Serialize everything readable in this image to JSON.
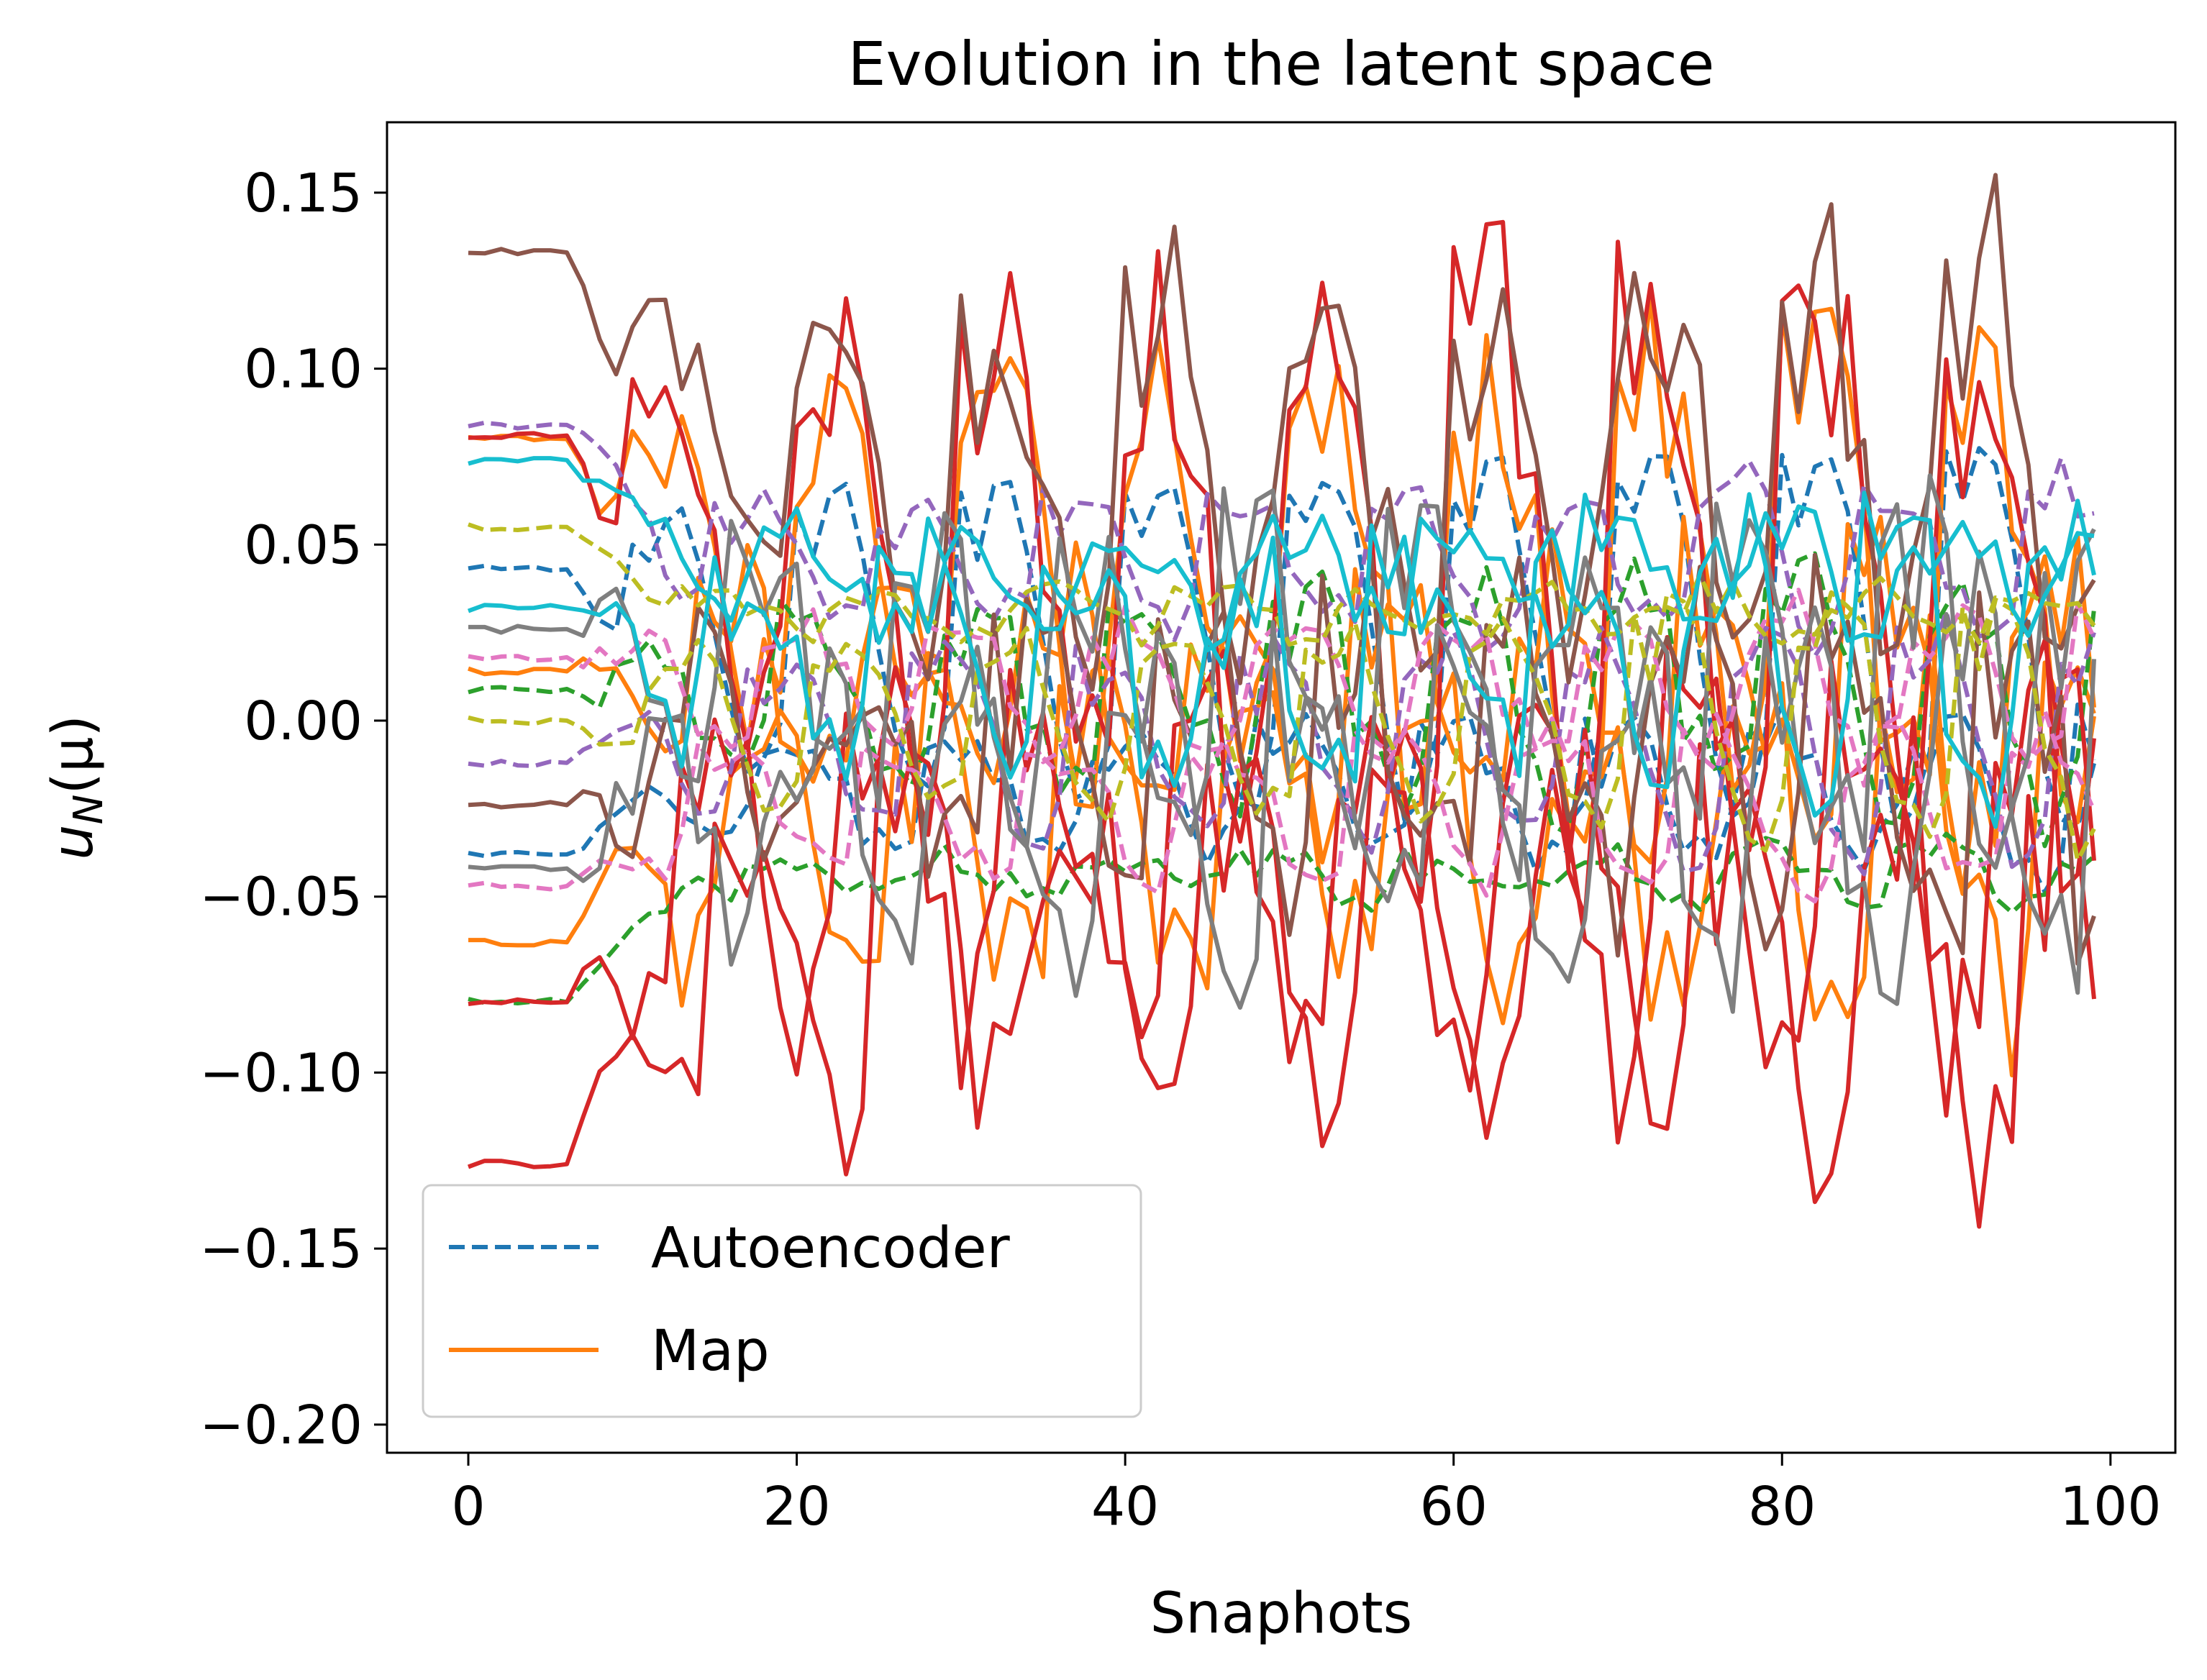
{
  "chart_data": {
    "type": "line",
    "title": "Evolution in the latent space",
    "xlabel": "Snaphots",
    "ylabel_main": "u",
    "ylabel_sub": "N",
    "ylabel_rest": "(μ)",
    "xlim": [
      -4.95,
      103.95
    ],
    "ylim": [
      -0.208,
      0.17
    ],
    "xticks": [
      0,
      20,
      40,
      60,
      80,
      100
    ],
    "yticks": [
      -0.2,
      -0.15,
      -0.1,
      -0.05,
      0.0,
      0.05,
      0.1,
      0.15
    ],
    "ytick_labels": [
      "−0.20",
      "−0.15",
      "−0.10",
      "−0.05",
      "0.00",
      "0.05",
      "0.10",
      "0.15"
    ],
    "xtick_labels": [
      "0",
      "20",
      "40",
      "60",
      "80",
      "100"
    ],
    "grid": false,
    "legend": {
      "placement": "lower-left",
      "entries": [
        {
          "label": "Autoencoder",
          "style": "dashed",
          "color": "#1f77b4"
        },
        {
          "label": "Map",
          "style": "solid",
          "color": "#ff7f0e"
        }
      ]
    },
    "x": {
      "start": 0,
      "stop": 99,
      "step": 1
    },
    "series": [
      {
        "color": "#1f77b4",
        "style": "dashed",
        "baseline": 0.043,
        "period": 10,
        "phase": 0.0,
        "amp": 0.052,
        "noise": 0.004
      },
      {
        "color": "#1f77b4",
        "style": "dashed",
        "baseline": -0.038,
        "period": 10,
        "phase": 2.0,
        "amp": 0.018,
        "noise": 0.006
      },
      {
        "color": "#ff7f0e",
        "style": "solid",
        "baseline": 0.08,
        "period": 10,
        "phase": 0.0,
        "amp": 0.055,
        "noise": 0.02
      },
      {
        "color": "#ff7f0e",
        "style": "solid",
        "baseline": -0.063,
        "period": 10,
        "phase": 4.0,
        "amp": 0.04,
        "noise": 0.02
      },
      {
        "color": "#ff7f0e",
        "style": "solid",
        "baseline": 0.014,
        "period": 10,
        "phase": 6.0,
        "amp": 0.035,
        "noise": 0.015
      },
      {
        "color": "#2ca02c",
        "style": "dashed",
        "baseline": -0.08,
        "period": 10,
        "phase": 3.0,
        "amp": 0.006,
        "noise": 0.004
      },
      {
        "color": "#2ca02c",
        "style": "dashed",
        "baseline": 0.009,
        "period": 10,
        "phase": 1.0,
        "amp": 0.03,
        "noise": 0.01
      },
      {
        "color": "#d62728",
        "style": "solid",
        "baseline": -0.126,
        "period": 10,
        "phase": 5.0,
        "amp": 0.05,
        "noise": 0.02
      },
      {
        "color": "#d62728",
        "style": "solid",
        "baseline": 0.081,
        "period": 10,
        "phase": 0.0,
        "amp": 0.07,
        "noise": 0.025
      },
      {
        "color": "#d62728",
        "style": "solid",
        "baseline": -0.08,
        "period": 10,
        "phase": 7.0,
        "amp": 0.05,
        "noise": 0.02
      },
      {
        "color": "#9467bd",
        "style": "dashed",
        "baseline": 0.084,
        "period": 10,
        "phase": 5.0,
        "amp": 0.02,
        "noise": 0.006
      },
      {
        "color": "#9467bd",
        "style": "dashed",
        "baseline": -0.012,
        "period": 10,
        "phase": 3.0,
        "amp": 0.03,
        "noise": 0.006
      },
      {
        "color": "#8c564b",
        "style": "solid",
        "baseline": 0.133,
        "period": 10,
        "phase": 0.0,
        "amp": 0.05,
        "noise": 0.02
      },
      {
        "color": "#8c564b",
        "style": "solid",
        "baseline": -0.024,
        "period": 10,
        "phase": 8.0,
        "amp": 0.04,
        "noise": 0.02
      },
      {
        "color": "#e377c2",
        "style": "dashed",
        "baseline": -0.047,
        "period": 10,
        "phase": 6.0,
        "amp": 0.02,
        "noise": 0.006
      },
      {
        "color": "#e377c2",
        "style": "dashed",
        "baseline": 0.018,
        "period": 10,
        "phase": 2.0,
        "amp": 0.02,
        "noise": 0.006
      },
      {
        "color": "#7f7f7f",
        "style": "solid",
        "baseline": -0.042,
        "period": 10,
        "phase": 1.0,
        "amp": 0.04,
        "noise": 0.02
      },
      {
        "color": "#7f7f7f",
        "style": "solid",
        "baseline": 0.026,
        "period": 10,
        "phase": 4.0,
        "amp": 0.035,
        "noise": 0.02
      },
      {
        "color": "#bcbd22",
        "style": "dashed",
        "baseline": 0.055,
        "period": 10,
        "phase": 7.0,
        "amp": 0.006,
        "noise": 0.004
      },
      {
        "color": "#bcbd22",
        "style": "dashed",
        "baseline": 0.0,
        "period": 10,
        "phase": 9.0,
        "amp": 0.03,
        "noise": 0.006
      },
      {
        "color": "#17becf",
        "style": "solid",
        "baseline": 0.074,
        "period": 10,
        "phase": 2.0,
        "amp": 0.015,
        "noise": 0.008
      },
      {
        "color": "#17becf",
        "style": "solid",
        "baseline": 0.032,
        "period": 10,
        "phase": 5.0,
        "amp": 0.03,
        "noise": 0.015
      }
    ]
  }
}
